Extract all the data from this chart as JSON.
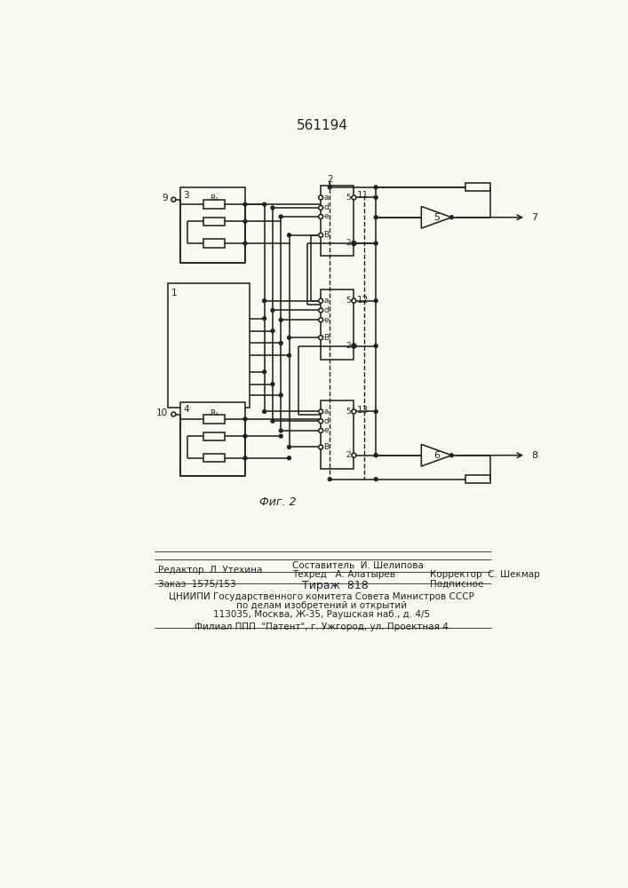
{
  "title": "561194",
  "fig_label": "Фиг. 2",
  "bg_color": "#f8f8f4",
  "lc": "#222222",
  "lw": 1.15,
  "footer": [
    [
      115,
      672,
      "Редактор  Л. Утехина",
      7.5,
      "left"
    ],
    [
      310,
      665,
      "Составитель  И. Шелипова",
      7.5,
      "left"
    ],
    [
      310,
      678,
      "Техред   А. Алатырев",
      7.5,
      "left"
    ],
    [
      510,
      678,
      "Корректор  С. Шекмар",
      7.5,
      "left"
    ],
    [
      115,
      692,
      "Заказ  1575/153",
      7.5,
      "left"
    ],
    [
      325,
      692,
      "Тираж  818",
      9,
      "left"
    ],
    [
      510,
      692,
      "Подписное",
      7.5,
      "left"
    ],
    [
      353,
      710,
      "ЦНИИПИ Государственного комитета Совета Министров СССР",
      7.5,
      "center"
    ],
    [
      353,
      723,
      "по делам изобретений и открытий",
      7.5,
      "center"
    ],
    [
      353,
      736,
      "113035, Москва, Ж-35, Раушская наб., д. 4/5",
      7.5,
      "center"
    ],
    [
      353,
      754,
      "Филиал ППП  \"Патент\", г. Ужгород, ул. Проектная 4",
      7.5,
      "center"
    ]
  ]
}
